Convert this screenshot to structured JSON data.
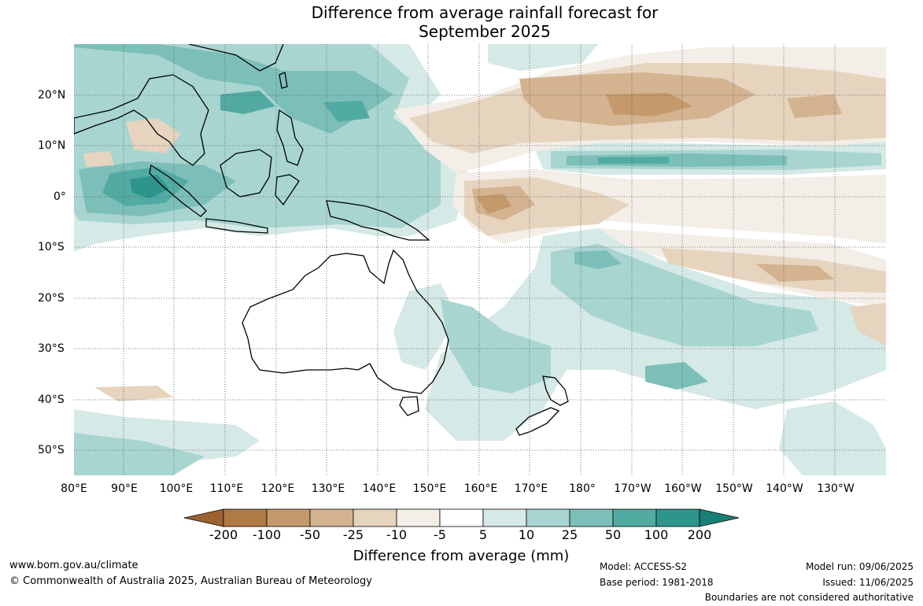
{
  "title_line1": "Difference from average rainfall forecast for",
  "title_line2": "September 2025",
  "lon_labels": [
    "80°E",
    "90°E",
    "100°E",
    "110°E",
    "120°E",
    "130°E",
    "140°E",
    "150°E",
    "160°E",
    "170°E",
    "180°",
    "170°W",
    "160°W",
    "150°W",
    "140°W",
    "130°W"
  ],
  "lat_labels": [
    "20°N",
    "10°N",
    "0°",
    "10°S",
    "20°S",
    "30°S",
    "40°S",
    "50°S"
  ],
  "legend": {
    "title": "Difference from average (mm)",
    "tick_labels": [
      "-200",
      "-100",
      "-50",
      "-25",
      "-10",
      "-5",
      "5",
      "10",
      "25",
      "50",
      "100",
      "200"
    ],
    "colors": [
      "#9c6230",
      "#b07a45",
      "#c49a6c",
      "#d4b390",
      "#e6d4bf",
      "#f3eee7",
      "#ffffff",
      "#d5e9e6",
      "#a8d5d0",
      "#7cbfb8",
      "#52aba3",
      "#2e958c",
      "#1a7f76"
    ]
  },
  "footer": {
    "website": "www.bom.gov.au/climate",
    "copyright": "© Commonwealth of Australia 2025, Australian Bureau of Meteorology",
    "model": "Model: ACCESS-S2",
    "base_period": "Base period: 1981-2018",
    "model_run": "Model run: 09/06/2025",
    "issued": "Issued: 11/06/2025",
    "disclaimer": "Boundaries are not considered authoritative"
  }
}
